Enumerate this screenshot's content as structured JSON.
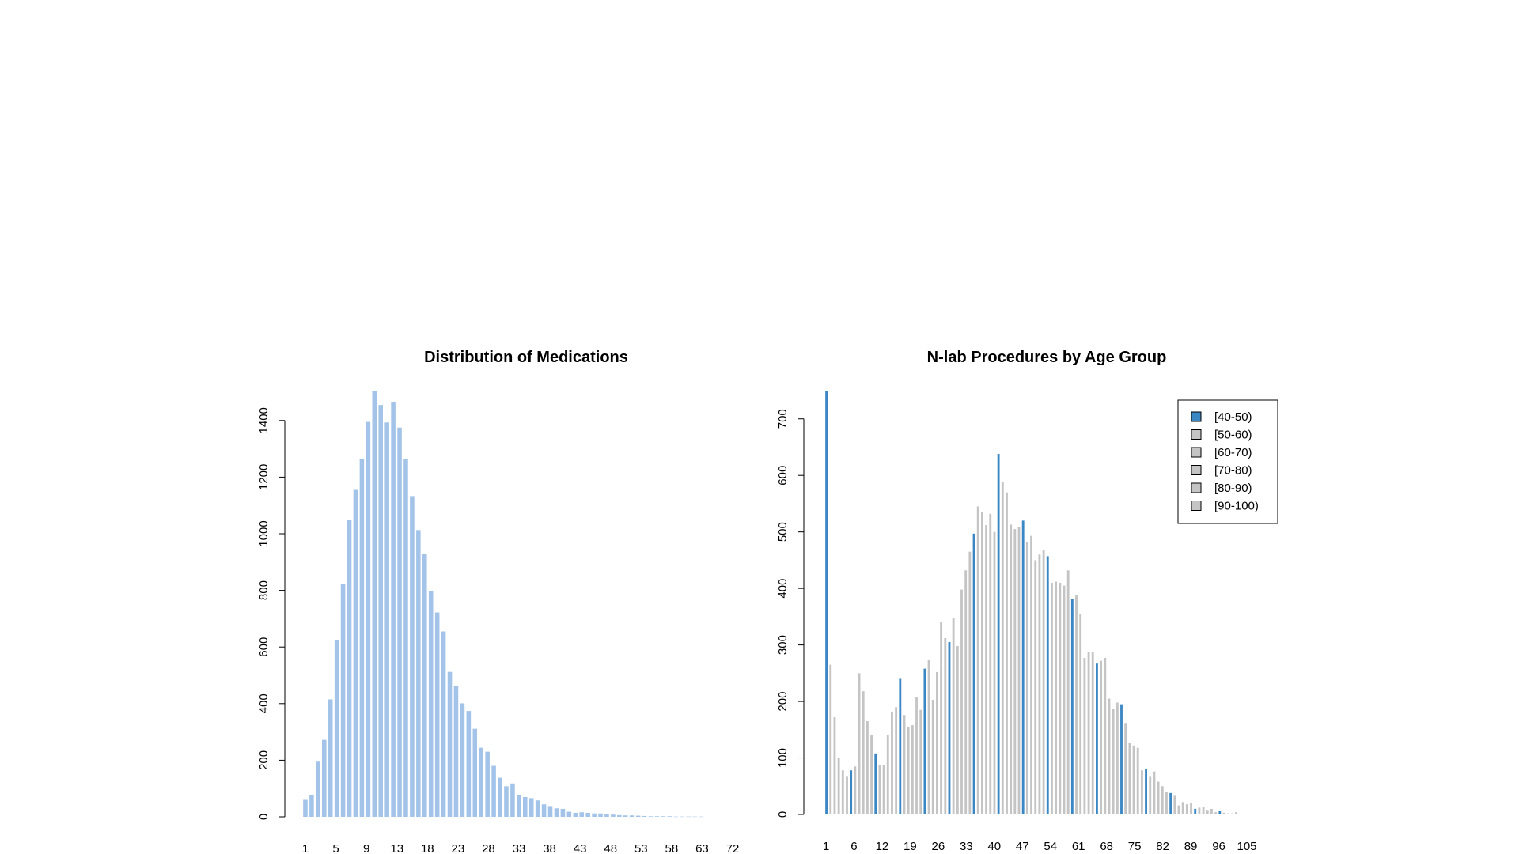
{
  "colors": {
    "background": "#ffffff",
    "medications_bar": "#a3c4e8",
    "age_40_50": "#3a87c4",
    "age_other": "#c4c4c4",
    "axis": "#000000"
  },
  "chart_data": [
    {
      "type": "bar",
      "title": "Distribution of Medications",
      "xlabel": "",
      "ylabel": "",
      "ylim": [
        0,
        1500
      ],
      "y_ticks": [
        0,
        200,
        400,
        600,
        800,
        1000,
        1200,
        1400
      ],
      "x_tick_labels": [
        "1",
        "5",
        "9",
        "13",
        "18",
        "23",
        "28",
        "33",
        "38",
        "43",
        "48",
        "53",
        "58",
        "63",
        "72"
      ],
      "categories": [
        "1",
        "2",
        "3",
        "4",
        "5",
        "6",
        "7",
        "8",
        "9",
        "10",
        "11",
        "12",
        "13",
        "14",
        "15",
        "16",
        "17",
        "18",
        "19",
        "20",
        "21",
        "22",
        "23",
        "24",
        "25",
        "26",
        "27",
        "28",
        "29",
        "30",
        "31",
        "32",
        "33",
        "34",
        "35",
        "36",
        "37",
        "38",
        "39",
        "40",
        "41",
        "42",
        "43",
        "44",
        "45",
        "46",
        "47",
        "48",
        "49",
        "50",
        "51",
        "52",
        "53",
        "54",
        "55",
        "56",
        "57",
        "58",
        "59",
        "60",
        "61",
        "62",
        "63",
        "64"
      ],
      "values": [
        60,
        78,
        195,
        272,
        415,
        625,
        822,
        1048,
        1155,
        1265,
        1395,
        1505,
        1455,
        1393,
        1465,
        1375,
        1265,
        1133,
        1013,
        928,
        798,
        722,
        655,
        512,
        462,
        401,
        374,
        311,
        244,
        230,
        180,
        138,
        108,
        118,
        78,
        70,
        66,
        58,
        44,
        38,
        30,
        28,
        18,
        14,
        16,
        14,
        12,
        12,
        10,
        8,
        6,
        5,
        5,
        4,
        3,
        2,
        2,
        2,
        2,
        1,
        1,
        1,
        1,
        1
      ]
    },
    {
      "type": "bar",
      "title": "N-lab Procedures by Age Group",
      "xlabel": "",
      "ylabel": "",
      "ylim": [
        0,
        750
      ],
      "y_ticks": [
        0,
        100,
        200,
        300,
        400,
        500,
        600,
        700
      ],
      "x_tick_labels": [
        "1",
        "6",
        "12",
        "19",
        "26",
        "33",
        "40",
        "47",
        "54",
        "61",
        "68",
        "75",
        "82",
        "89",
        "96",
        "105"
      ],
      "legend": {
        "placement": "top-right",
        "entries": [
          "[40-50)",
          "[50-60)",
          "[60-70)",
          "[70-80)",
          "[80-90)",
          "[90-100)"
        ]
      },
      "categories": [
        "1",
        "2",
        "3",
        "4",
        "5",
        "6",
        "7",
        "8",
        "9",
        "10",
        "11",
        "12",
        "13",
        "14",
        "15",
        "16",
        "17",
        "18",
        "19",
        "20",
        "21",
        "22",
        "23",
        "24",
        "25",
        "26",
        "27",
        "28",
        "29",
        "30",
        "31",
        "32",
        "33",
        "34",
        "35",
        "36",
        "37",
        "38",
        "39",
        "40",
        "41",
        "42",
        "43",
        "44",
        "45",
        "46",
        "47",
        "48",
        "49",
        "50",
        "51",
        "52",
        "53",
        "54",
        "55",
        "56",
        "57",
        "58",
        "59",
        "60",
        "61",
        "62",
        "63",
        "64",
        "65",
        "66",
        "67",
        "68",
        "69",
        "70",
        "71",
        "72",
        "73",
        "74",
        "75",
        "76",
        "77",
        "78",
        "79",
        "80",
        "81",
        "82",
        "83",
        "84",
        "85",
        "86",
        "87",
        "88",
        "89",
        "90",
        "91",
        "92",
        "93",
        "94",
        "95",
        "96",
        "97",
        "98",
        "99",
        "100",
        "101",
        "102",
        "103",
        "104",
        "105",
        "106"
      ],
      "values": [
        750,
        265,
        172,
        100,
        78,
        68,
        78,
        85,
        250,
        218,
        165,
        140,
        108,
        87,
        87,
        140,
        182,
        190,
        240,
        176,
        155,
        158,
        207,
        185,
        258,
        273,
        203,
        252,
        340,
        312,
        305,
        348,
        298,
        398,
        432,
        465,
        497,
        545,
        535,
        512,
        532,
        500,
        638,
        588,
        570,
        513,
        505,
        508,
        520,
        482,
        493,
        450,
        460,
        468,
        457,
        410,
        412,
        410,
        405,
        432,
        382,
        388,
        355,
        277,
        288,
        287,
        267,
        272,
        277,
        205,
        187,
        198,
        195,
        162,
        127,
        122,
        118,
        78,
        80,
        68,
        76,
        58,
        50,
        40,
        38,
        33,
        16,
        22,
        18,
        20,
        10,
        12,
        14,
        8,
        10,
        4,
        6,
        3,
        2,
        2,
        4,
        1,
        1,
        1,
        1,
        1
      ],
      "highlight_series": "[40-50)",
      "highlight_indices": [
        0,
        6,
        12,
        18,
        24,
        30,
        36,
        42,
        48,
        54,
        60,
        66,
        72,
        78,
        84,
        90,
        96,
        102
      ]
    }
  ]
}
